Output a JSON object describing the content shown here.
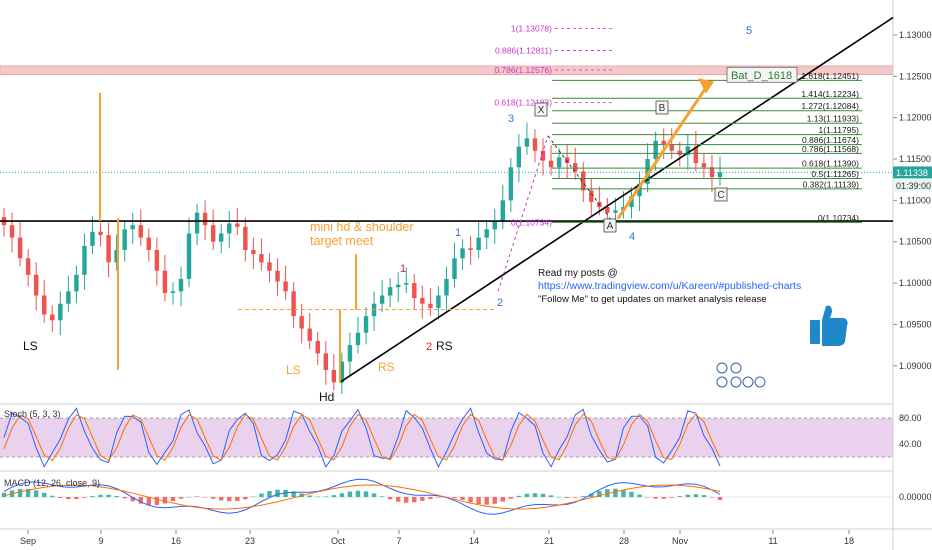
{
  "chart_data": {
    "type": "candlestick",
    "pair_pattern_label": "Bat_D_1618",
    "price_axis": {
      "ylim": [
        1.0855,
        1.1335
      ],
      "ticks": [
        "1.13000",
        "1.12500",
        "1.12000",
        "1.11500",
        "1.11000",
        "1.10500",
        "1.10000",
        "1.09500",
        "1.09000"
      ],
      "current_price": "1.11338",
      "countdown": "01:39:00"
    },
    "time_axis": {
      "ticks": [
        "Sep",
        "9",
        "16",
        "23",
        "Oct",
        "7",
        "14",
        "21",
        "28",
        "Nov",
        "11",
        "18"
      ]
    },
    "series_close_approx": [
      1.107,
      1.1055,
      1.103,
      1.101,
      1.0985,
      1.0962,
      1.0955,
      1.0975,
      1.099,
      1.101,
      1.1045,
      1.1062,
      1.1058,
      1.1025,
      1.104,
      1.1065,
      1.107,
      1.1055,
      1.104,
      1.1015,
      1.0988,
      1.099,
      1.1005,
      1.106,
      1.1085,
      1.107,
      1.105,
      1.106,
      1.1072,
      1.1068,
      1.104,
      1.1035,
      1.1025,
      1.1015,
      1.1002,
      1.099,
      1.096,
      1.0945,
      1.093,
      1.0915,
      1.0895,
      1.088,
      1.0905,
      1.0925,
      1.094,
      1.096,
      1.0975,
      1.0985,
      1.0995,
      1.0998,
      1.1,
      1.0982,
      1.0975,
      1.097,
      1.0985,
      1.1005,
      1.103,
      1.1042,
      1.104,
      1.1055,
      1.1065,
      1.1075,
      1.11,
      1.114,
      1.1165,
      1.1175,
      1.116,
      1.1148,
      1.114,
      1.1152,
      1.1145,
      1.1135,
      1.1112,
      1.1098,
      1.1092,
      1.1085,
      1.1088,
      1.1092,
      1.1105,
      1.112,
      1.115,
      1.1172,
      1.1168,
      1.116,
      1.1155,
      1.1165,
      1.1145,
      1.114,
      1.1128,
      1.1134
    ],
    "fib_levels_right": [
      {
        "label": "1.618(1.12451)",
        "value": 1.12451
      },
      {
        "label": "1.414(1.12234)",
        "value": 1.12234
      },
      {
        "label": "1.272(1.12084)",
        "value": 1.12084
      },
      {
        "label": "1.13(1.11933)",
        "value": 1.11933
      },
      {
        "label": "1(1.11795)",
        "value": 1.11795
      },
      {
        "label": "0.886(1.11674)",
        "value": 1.11674
      },
      {
        "label": "0.786(1.11568)",
        "value": 1.11568
      },
      {
        "label": "0.618(1.11390)",
        "value": 1.1139
      },
      {
        "label": "0.5(1.11265)",
        "value": 1.11265
      },
      {
        "label": "0.382(1.11139)",
        "value": 1.11139
      },
      {
        "label": "0(1.10734)",
        "value": 1.10734
      }
    ],
    "fib_levels_pink": [
      {
        "label": "1(1.13078)",
        "value": 1.13078
      },
      {
        "label": "0.886(1.12811)",
        "value": 1.12811
      },
      {
        "label": "0.786(1.12576)",
        "value": 1.12576
      },
      {
        "label": "0.618(1.12183)",
        "value": 1.12183
      },
      {
        "label": "0(1.10734)",
        "value": 1.10734
      }
    ],
    "annotations": {
      "wave_labels": [
        "1",
        "2",
        "3",
        "4",
        "5"
      ],
      "red_labels": [
        "1",
        "2"
      ],
      "points": [
        "X",
        "A",
        "B",
        "C"
      ],
      "pattern_left": [
        "LS",
        "Hd"
      ],
      "pattern_mini": [
        "LS",
        "RS"
      ],
      "rs_label": "RS",
      "mini_text_1": "mini hd & shoulder",
      "mini_text_2": "target meet",
      "read_text": "Read my posts @",
      "link_text": "https://www.tradingview.com/u/Kareen/#published-charts",
      "follow_text": "\"Follow Me\" to get updates on market analysis release"
    },
    "stoch": {
      "label": "Stoch (5, 3, 3)",
      "ticks": [
        "80.00",
        "40.00"
      ]
    },
    "macd": {
      "label": "MACD (12, 26, close, 9)",
      "ticks": [
        "0.00000"
      ]
    },
    "colors": {
      "up": "#26a69a",
      "down": "#ef5350",
      "fib_line": "#3c8a3c",
      "orange": "#f7a130",
      "pink": "#cc33cc",
      "trend": "#000000",
      "stoch_band": "#e1bee7",
      "resistance_band": "#f5c9c9",
      "price_tag": "#26a69a"
    }
  }
}
